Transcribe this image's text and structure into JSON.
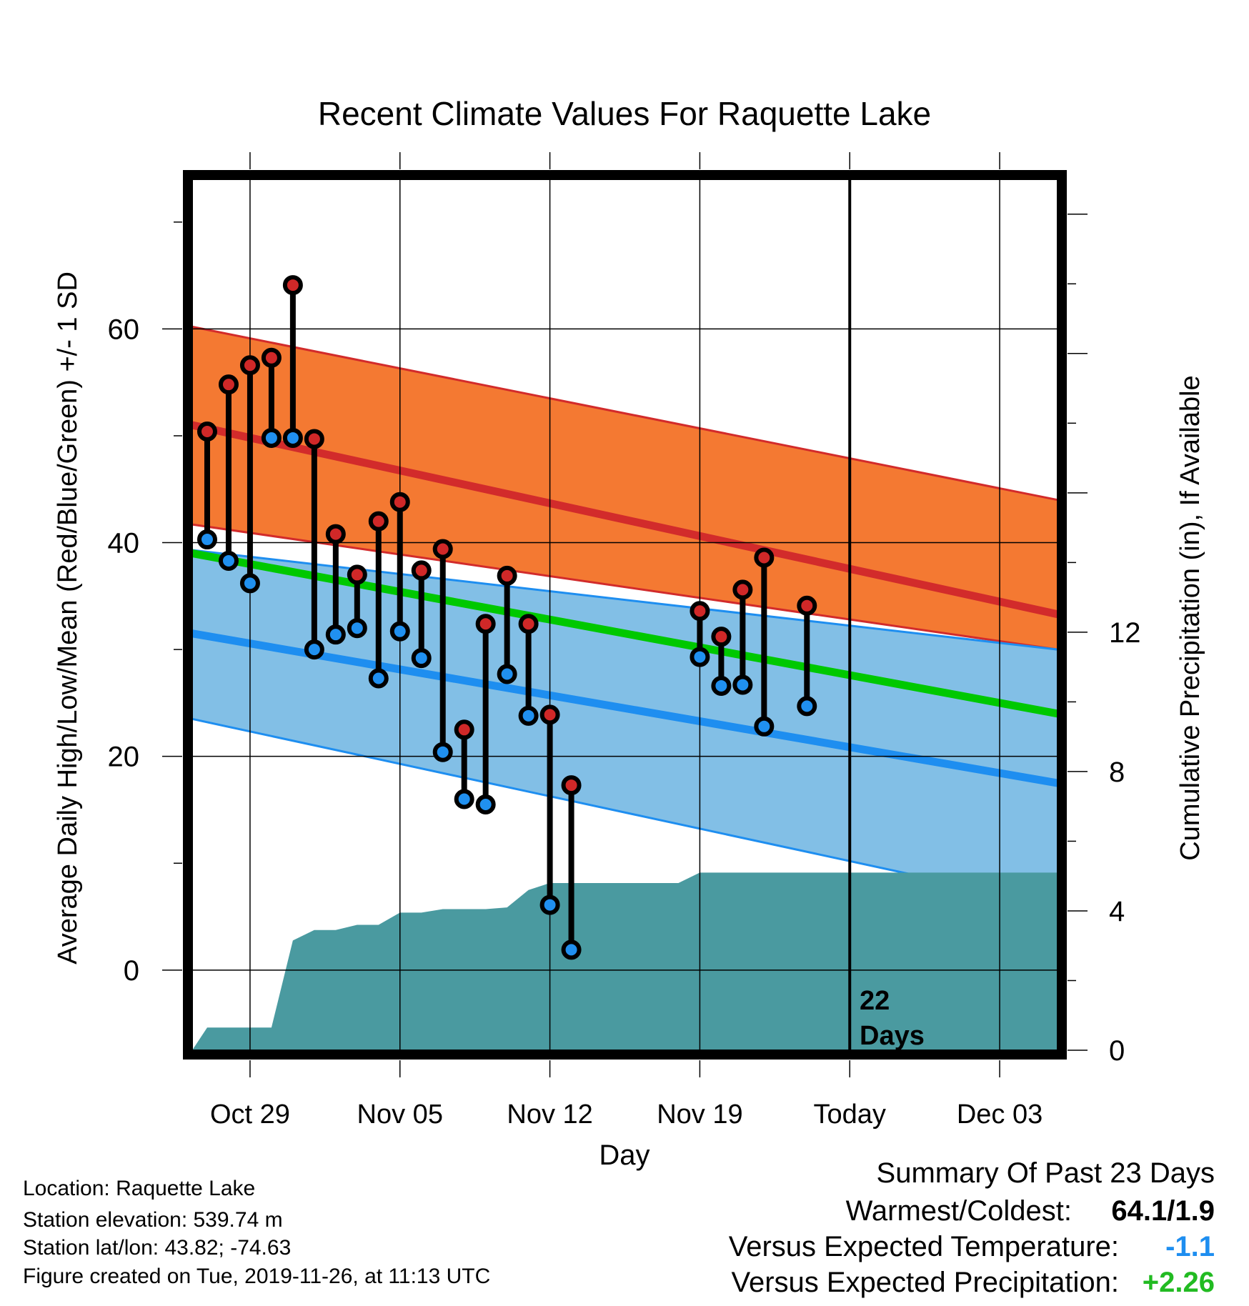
{
  "chart_data": {
    "type": "line",
    "title": "Recent Climate Values For Raquette Lake",
    "xlabel": "Day",
    "ylabel": "Average Daily High/Low/Mean (Red/Blue/Green) +/- 1 SD",
    "y2label": "Cumulative Precipitation (in), If Available",
    "x_tick_labels": [
      "Oct 29",
      "Nov 05",
      "Nov 12",
      "Nov 19",
      "Today",
      "Dec 03"
    ],
    "x_tick_day_index": [
      3,
      10,
      17,
      24,
      31,
      38
    ],
    "x_range_day_index": [
      0.3,
      40.7
    ],
    "ylim": [
      -7.5,
      74
    ],
    "y_ticks": [
      0,
      20,
      40,
      60
    ],
    "y2lim": [
      0,
      25
    ],
    "y2_ticks": [
      0,
      4,
      8,
      12
    ],
    "today_marker_label": [
      "22",
      "Days"
    ],
    "today_day_index": 31,
    "grid": true,
    "normals": {
      "day_index": [
        0.3,
        40.7
      ],
      "high_mean": [
        51,
        33.3
      ],
      "high_upper": [
        60.2,
        44
      ],
      "high_lower": [
        41.7,
        30
      ],
      "mean": [
        39,
        24
      ],
      "low_mean": [
        31.5,
        17.5
      ],
      "low_upper": [
        39.3,
        30
      ],
      "low_lower": [
        23.5,
        6
      ]
    },
    "daily_obs": [
      {
        "day": 1,
        "high": 50.4,
        "low": 40.3
      },
      {
        "day": 2,
        "high": 54.8,
        "low": 38.3
      },
      {
        "day": 3,
        "high": 56.6,
        "low": 36.2
      },
      {
        "day": 4,
        "high": 57.3,
        "low": 49.8
      },
      {
        "day": 5,
        "high": 64.1,
        "low": 49.8
      },
      {
        "day": 6,
        "high": 49.7,
        "low": 30.0
      },
      {
        "day": 7,
        "high": 40.8,
        "low": 31.4
      },
      {
        "day": 8,
        "high": 37.0,
        "low": 32.0
      },
      {
        "day": 9,
        "high": 42.0,
        "low": 27.3
      },
      {
        "day": 10,
        "high": 43.8,
        "low": 31.7
      },
      {
        "day": 11,
        "high": 37.4,
        "low": 29.2
      },
      {
        "day": 12,
        "high": 39.4,
        "low": 20.4
      },
      {
        "day": 13,
        "high": 22.5,
        "low": 16.0
      },
      {
        "day": 14,
        "high": 32.4,
        "low": 15.5
      },
      {
        "day": 15,
        "high": 36.9,
        "low": 27.7
      },
      {
        "day": 16,
        "high": 32.4,
        "low": 23.8
      },
      {
        "day": 17,
        "high": 23.9,
        "low": 6.1
      },
      {
        "day": 18,
        "high": 17.3,
        "low": 1.9
      },
      {
        "day": 24,
        "high": 33.6,
        "low": 29.3
      },
      {
        "day": 25,
        "high": 31.2,
        "low": 26.6
      },
      {
        "day": 26,
        "high": 35.6,
        "low": 26.7
      },
      {
        "day": 27,
        "high": 38.6,
        "low": 22.8
      },
      {
        "day": 29,
        "high": 34.1,
        "low": 24.7
      }
    ],
    "cumulative_precip": {
      "day_index": [
        0.3,
        1,
        2,
        3,
        4,
        5,
        6,
        7,
        8,
        9,
        10,
        11,
        12,
        13,
        14,
        15,
        16,
        17,
        18,
        19,
        20,
        21,
        22,
        23,
        24,
        25,
        26,
        27,
        28,
        29,
        30,
        31,
        32,
        33,
        34,
        35,
        36,
        37,
        38,
        39,
        40,
        40.7
      ],
      "value": [
        0,
        0.65,
        0.65,
        0.65,
        0.65,
        3.15,
        3.45,
        3.45,
        3.6,
        3.6,
        3.95,
        3.95,
        4.05,
        4.05,
        4.05,
        4.1,
        4.6,
        4.8,
        4.8,
        4.8,
        4.8,
        4.8,
        4.8,
        4.8,
        5.1,
        5.1,
        5.1,
        5.1,
        5.1,
        5.1,
        5.1,
        5.1,
        5.1,
        5.1,
        5.1,
        5.1,
        5.1,
        5.1,
        5.1,
        5.1,
        5.1,
        5.1
      ]
    },
    "colors": {
      "high_band": "#f47932",
      "high_line": "#d22b2b",
      "low_band": "#82bfe6",
      "low_line": "#1e8ef0",
      "mean_line": "#00c800",
      "overlap": "#8e1616",
      "precip": "#4a9aa0",
      "high_marker": "#d02828",
      "low_marker": "#2090f0"
    }
  },
  "footer": {
    "location": "Location: Raquette Lake",
    "elevation": "Station elevation: 539.74 m",
    "latlon": "Station lat/lon: 43.82; -74.63",
    "created": "Figure created on Tue, 2019-11-26, at 11:13 UTC"
  },
  "summary": {
    "title": "Summary Of Past 23 Days",
    "warmest_coldest_label": "Warmest/Coldest:",
    "warmest_coldest_value": "64.1/1.9",
    "temp_label": "Versus Expected Temperature:",
    "temp_value": "-1.1",
    "temp_color": "#1e8ef0",
    "precip_label": "Versus Expected Precipitation:",
    "precip_value": "+2.26",
    "precip_color": "#22bb22"
  }
}
